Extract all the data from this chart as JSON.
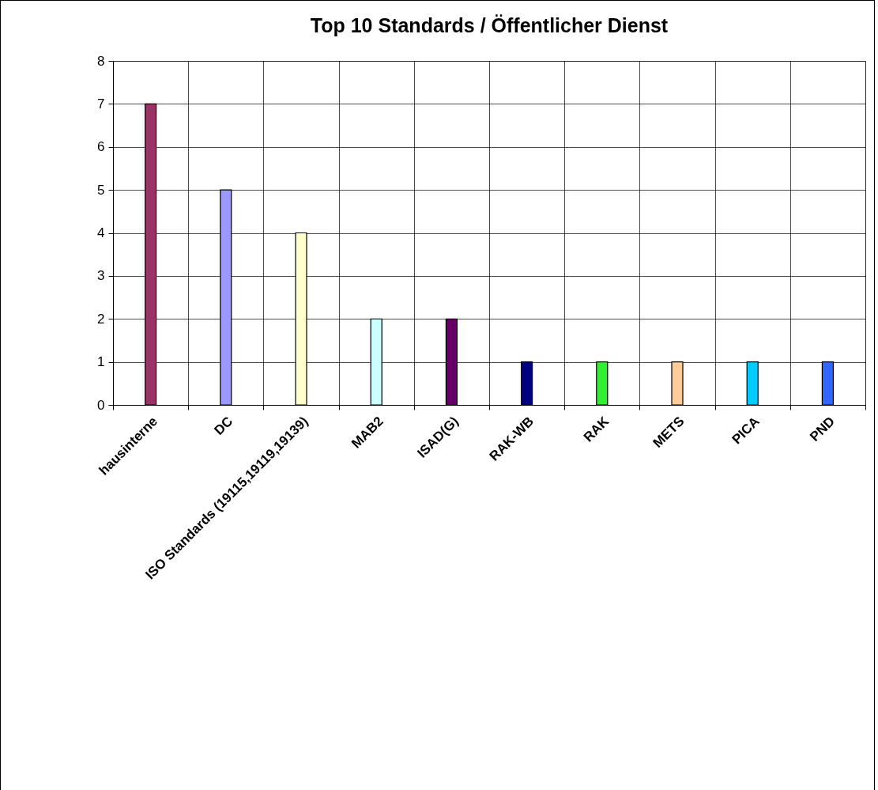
{
  "chart_data": {
    "type": "bar",
    "title": "Top 10 Standards / Öffentlicher Dienst",
    "categories": [
      "hausinterne",
      "DC",
      "ISO Standards  (19115,19119,19139)",
      "MAB2",
      "ISAD(G)",
      "RAK-WB",
      "RAK",
      "METS",
      "PICA",
      "PND"
    ],
    "values": [
      7,
      5,
      4,
      2,
      2,
      1,
      1,
      1,
      1,
      1
    ],
    "colors": [
      "#993366",
      "#9999ff",
      "#ffffcc",
      "#ccffff",
      "#660066",
      "#000080",
      "#33ee33",
      "#ffcc99",
      "#00ccff",
      "#3366ff"
    ],
    "ylim": [
      0,
      8
    ],
    "yticks": [
      0,
      1,
      2,
      3,
      4,
      5,
      6,
      7,
      8
    ],
    "grid": true,
    "legend": false
  }
}
